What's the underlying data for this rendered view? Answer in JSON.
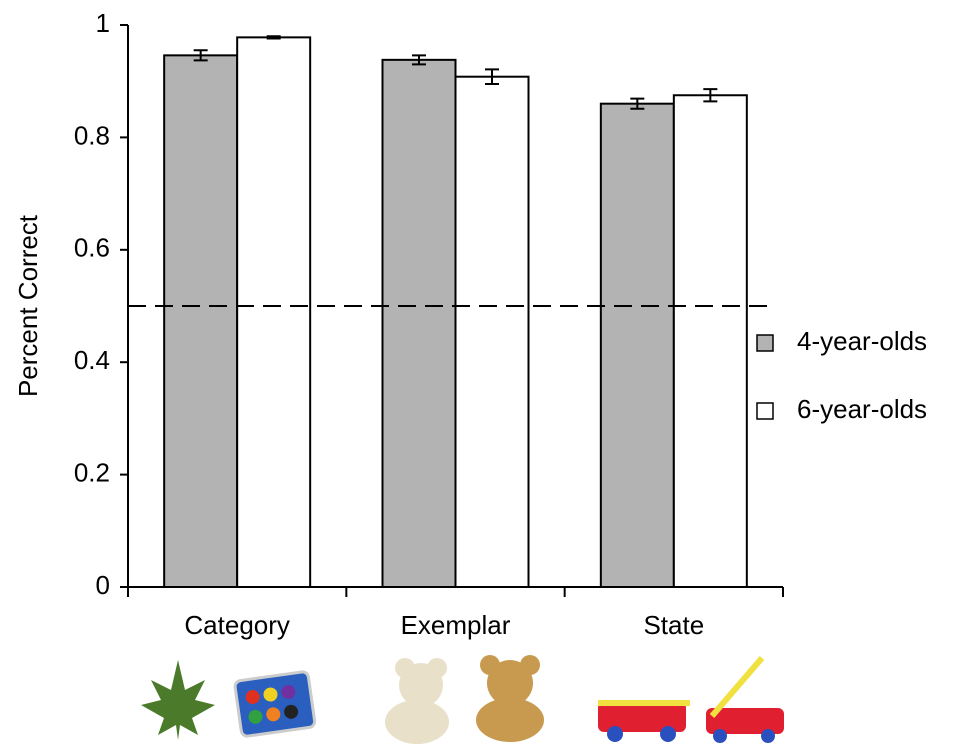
{
  "chart_data": {
    "type": "bar",
    "y_label": "Percent Correct",
    "categories": [
      "Category",
      "Exemplar",
      "State"
    ],
    "series": [
      {
        "name": "4-year-olds",
        "color": "#b3b3b3",
        "values": [
          0.946,
          0.938,
          0.86
        ],
        "errors": [
          0.009,
          0.008,
          0.009
        ]
      },
      {
        "name": "6-year-olds",
        "color": "#ffffff",
        "values": [
          0.978,
          0.908,
          0.875
        ],
        "errors": [
          0.002,
          0.013,
          0.011
        ]
      }
    ],
    "ylim": [
      0,
      1
    ],
    "yticks": [
      0,
      0.2,
      0.4,
      0.6,
      0.8,
      1
    ],
    "reference_line": 0.5,
    "legend": "right"
  }
}
